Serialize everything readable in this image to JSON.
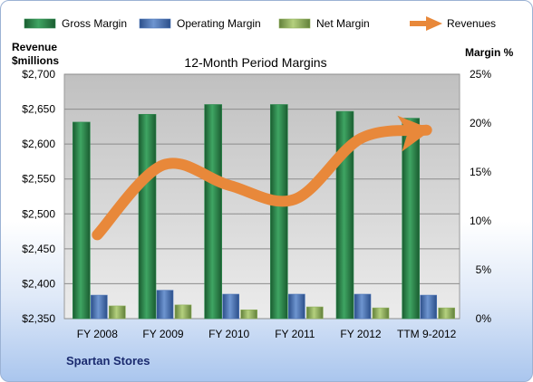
{
  "chart_data": {
    "type": "bar",
    "title": "12-Month Period Margins",
    "company": "Spartan Stores",
    "left_axis_label": [
      "Revenue",
      "$millions"
    ],
    "right_axis_label": "Margin %",
    "categories": [
      "FY 2008",
      "FY 2009",
      "FY 2010",
      "FY 2011",
      "FY 2012",
      "TTM 9-2012"
    ],
    "left_ylim": [
      2350,
      2700
    ],
    "left_ticks": [
      "$2,350",
      "$2,400",
      "$2,450",
      "$2,500",
      "$2,550",
      "$2,600",
      "$2,650",
      "$2,700"
    ],
    "right_ylim": [
      0,
      25
    ],
    "right_ticks": [
      "0%",
      "5%",
      "10%",
      "15%",
      "20%",
      "25%"
    ],
    "grid": true,
    "legend_position": "top",
    "series": [
      {
        "name": "Gross Margin",
        "type": "bar",
        "axis": "right",
        "color": "#2e8b4f",
        "values": [
          20.1,
          20.9,
          21.9,
          21.9,
          21.2,
          20.5
        ]
      },
      {
        "name": "Operating Margin",
        "type": "bar",
        "axis": "right",
        "color": "#4a74b8",
        "values": [
          2.4,
          2.9,
          2.5,
          2.5,
          2.5,
          2.4
        ]
      },
      {
        "name": "Net Margin",
        "type": "bar",
        "axis": "right",
        "color": "#8fb05a",
        "values": [
          1.3,
          1.4,
          0.9,
          1.2,
          1.1,
          1.1
        ]
      },
      {
        "name": "Revenues",
        "type": "line",
        "axis": "left",
        "color": "#e8883a",
        "values": [
          2470,
          2570,
          2541,
          2521,
          2608,
          2620
        ]
      }
    ]
  }
}
